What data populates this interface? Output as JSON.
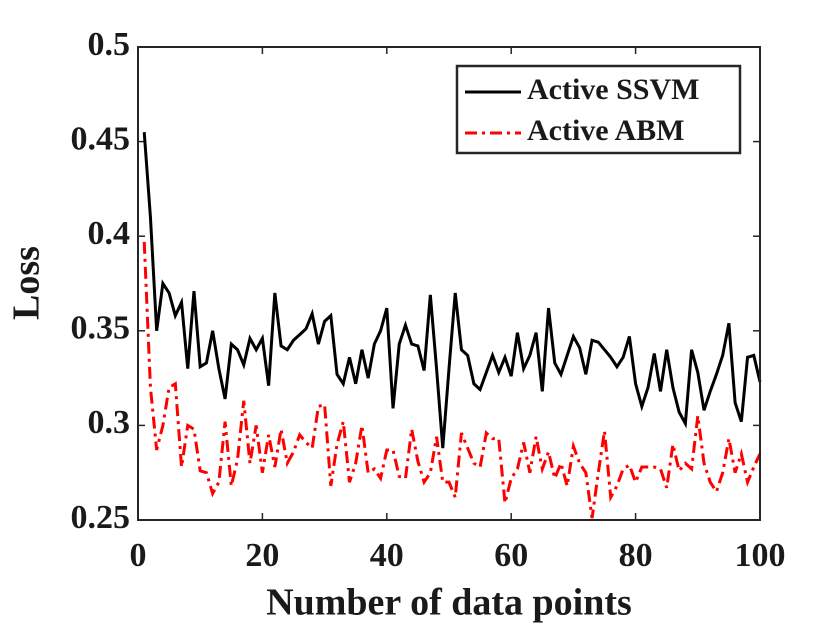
{
  "chart_data": {
    "type": "line",
    "xlabel": "Number of data points",
    "ylabel": "Loss",
    "x": [
      1,
      2,
      3,
      4,
      5,
      6,
      7,
      8,
      9,
      10,
      11,
      12,
      13,
      14,
      15,
      16,
      17,
      18,
      19,
      20,
      21,
      22,
      23,
      24,
      25,
      26,
      27,
      28,
      29,
      30,
      31,
      32,
      33,
      34,
      35,
      36,
      37,
      38,
      39,
      40,
      41,
      42,
      43,
      44,
      45,
      46,
      47,
      48,
      49,
      50,
      51,
      52,
      53,
      54,
      55,
      56,
      57,
      58,
      59,
      60,
      61,
      62,
      63,
      64,
      65,
      66,
      67,
      68,
      69,
      70,
      71,
      72,
      73,
      74,
      75,
      76,
      77,
      78,
      79,
      80,
      81,
      82,
      83,
      84,
      85,
      86,
      87,
      88,
      89,
      90,
      91,
      92,
      93,
      94,
      95,
      96,
      97,
      98,
      99,
      100
    ],
    "series": [
      {
        "name": "Active SSVM",
        "color": "#000000",
        "dash": "solid",
        "values": [
          0.455,
          0.41,
          0.35,
          0.375,
          0.37,
          0.358,
          0.365,
          0.33,
          0.371,
          0.331,
          0.333,
          0.35,
          0.33,
          0.314,
          0.343,
          0.34,
          0.332,
          0.346,
          0.34,
          0.346,
          0.321,
          0.37,
          0.342,
          0.34,
          0.345,
          0.348,
          0.351,
          0.359,
          0.343,
          0.355,
          0.358,
          0.327,
          0.322,
          0.336,
          0.322,
          0.34,
          0.325,
          0.343,
          0.35,
          0.362,
          0.309,
          0.343,
          0.353,
          0.343,
          0.342,
          0.329,
          0.369,
          0.33,
          0.288,
          0.33,
          0.37,
          0.34,
          0.337,
          0.322,
          0.319,
          0.328,
          0.337,
          0.328,
          0.336,
          0.326,
          0.349,
          0.33,
          0.337,
          0.349,
          0.318,
          0.362,
          0.333,
          0.327,
          0.337,
          0.347,
          0.341,
          0.327,
          0.345,
          0.344,
          0.34,
          0.336,
          0.331,
          0.336,
          0.347,
          0.322,
          0.31,
          0.32,
          0.338,
          0.318,
          0.34,
          0.32,
          0.307,
          0.301,
          0.34,
          0.328,
          0.308,
          0.318,
          0.327,
          0.337,
          0.354,
          0.312,
          0.302,
          0.336,
          0.337,
          0.323
        ]
      },
      {
        "name": "Active ABM",
        "color": "#ff0000",
        "dash": "dashdot",
        "values": [
          0.397,
          0.32,
          0.287,
          0.3,
          0.32,
          0.322,
          0.278,
          0.3,
          0.298,
          0.276,
          0.275,
          0.264,
          0.27,
          0.302,
          0.268,
          0.282,
          0.313,
          0.28,
          0.3,
          0.275,
          0.295,
          0.278,
          0.298,
          0.28,
          0.286,
          0.295,
          0.291,
          0.288,
          0.31,
          0.311,
          0.268,
          0.29,
          0.302,
          0.27,
          0.28,
          0.3,
          0.275,
          0.277,
          0.272,
          0.287,
          0.287,
          0.273,
          0.272,
          0.298,
          0.281,
          0.27,
          0.275,
          0.294,
          0.27,
          0.27,
          0.262,
          0.296,
          0.288,
          0.28,
          0.278,
          0.296,
          0.293,
          0.293,
          0.259,
          0.272,
          0.277,
          0.291,
          0.275,
          0.294,
          0.277,
          0.286,
          0.272,
          0.28,
          0.268,
          0.289,
          0.28,
          0.275,
          0.251,
          0.275,
          0.297,
          0.262,
          0.268,
          0.277,
          0.279,
          0.27,
          0.278,
          0.278,
          0.278,
          0.277,
          0.267,
          0.29,
          0.276,
          0.28,
          0.277,
          0.305,
          0.28,
          0.27,
          0.265,
          0.275,
          0.293,
          0.275,
          0.285,
          0.27,
          0.278,
          0.285
        ]
      }
    ],
    "xlim": [
      0,
      100
    ],
    "xticks": [
      0,
      20,
      40,
      60,
      80,
      100
    ],
    "ylim": [
      0.25,
      0.5
    ],
    "yticks": [
      0.25,
      0.3,
      0.35,
      0.4,
      0.45,
      0.5
    ],
    "legend": "northeast",
    "grid": false
  }
}
